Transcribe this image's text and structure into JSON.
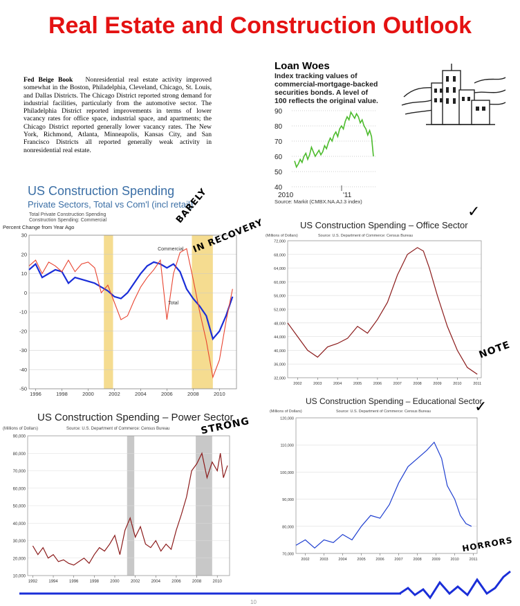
{
  "page_title": "Real Estate and Construction Outlook",
  "beige_book": {
    "heading": "Fed Beige Book",
    "text": "Nonresidential real estate activity improved somewhat in the Boston, Philadelphia, Cleveland, Chicago, St. Louis, and Dallas Districts. The Chicago District reported strong demand for industrial facilities, particularly from the automotive sector. The Philadelphia District reported improvements in terms of lower vacancy rates for office space, industrial space, and apartments; the Chicago District reported generally lower vacancy rates. The New York, Richmond, Atlanta, Minneapolis, Kansas City, and San Francisco Districts all reported generally weak activity in nonresidential real estate."
  },
  "annotations": {
    "barely": "BARELY",
    "in_recovery": "IN RECOVERY",
    "note": "NOTE",
    "strong": "STRONG",
    "horrors": "HORRORS",
    "check": "✓",
    "page_number": "10"
  },
  "colors": {
    "title": "#e41212",
    "green": "#4cbb2c",
    "blue": "#1a2ed8",
    "red": "#e8432f",
    "darkred": "#8b1a1a",
    "edu_blue": "#1f3fd0",
    "band_yellow": "#f5dc90",
    "band_gray": "#c8c8c8",
    "footer_blue": "#1a2ed8"
  },
  "chart_data": [
    {
      "id": "loan",
      "type": "line",
      "title": "Loan Woes",
      "subtitle": "Index tracking values of commercial-mortgage-backed securities bonds. A level of 100 reflects the original value.",
      "source": "Source: Markit (CMBX.NA.AJ.3 index)",
      "ylim": [
        40,
        90
      ],
      "yticks": [
        90,
        80,
        70,
        60,
        50,
        40
      ],
      "x_labels": [
        "2010",
        "'11"
      ],
      "values": [
        57,
        53,
        55,
        58,
        56,
        60,
        62,
        58,
        61,
        66,
        63,
        60,
        62,
        64,
        61,
        63,
        67,
        65,
        69,
        72,
        70,
        74,
        76,
        73,
        78,
        80,
        78,
        83,
        86,
        84,
        89,
        87,
        85,
        88,
        86,
        82,
        84,
        80,
        78,
        74,
        77,
        73,
        60
      ]
    },
    {
      "id": "us_spending",
      "type": "line",
      "title": "US Construction Spending",
      "subtitle": "Private Sectors, Total vs Com'l (incl retail)",
      "legend_note_1": "Total Private Construction Spending",
      "legend_note_2": "Construction Spending: Commercial",
      "ylabel": "Percent Change from Year Ago",
      "ylim": [
        -50,
        30
      ],
      "yticks": [
        30,
        20,
        10,
        0,
        -10,
        -20,
        -30,
        -40,
        -50
      ],
      "xlim": [
        1995.5,
        2011.3
      ],
      "xticks": [
        1996,
        1998,
        2000,
        2002,
        2004,
        2006,
        2008,
        2010
      ],
      "recessions": [
        [
          2001.2,
          2001.9
        ],
        [
          2007.9,
          2009.5
        ]
      ],
      "series": [
        {
          "name": "Total",
          "x": [
            1995.5,
            1996,
            1996.5,
            1997,
            1997.5,
            1998,
            1998.5,
            1999,
            1999.5,
            2000,
            2000.5,
            2001,
            2001.5,
            2002,
            2002.5,
            2003,
            2003.5,
            2004,
            2004.5,
            2005,
            2005.5,
            2006,
            2006.5,
            2007,
            2007.5,
            2008,
            2008.5,
            2009,
            2009.5,
            2010,
            2010.5,
            2011
          ],
          "y": [
            12,
            15,
            8,
            10,
            12,
            11,
            5,
            8,
            7,
            6,
            5,
            3,
            1,
            -2,
            -3,
            0,
            5,
            10,
            14,
            16,
            15,
            13,
            15,
            11,
            2,
            -3,
            -7,
            -12,
            -24,
            -20,
            -12,
            -2
          ]
        },
        {
          "name": "Commercial",
          "x": [
            1995.5,
            1996,
            1996.5,
            1997,
            1997.5,
            1998,
            1998.5,
            1999,
            1999.5,
            2000,
            2000.5,
            2001,
            2001.5,
            2002,
            2002.5,
            2003,
            2003.5,
            2004,
            2004.5,
            2005,
            2005.5,
            2006,
            2006.5,
            2007,
            2007.5,
            2008,
            2008.5,
            2009,
            2009.5,
            2010,
            2010.5,
            2011
          ],
          "y": [
            14,
            17,
            10,
            16,
            14,
            11,
            17,
            11,
            15,
            16,
            13,
            0,
            4,
            -5,
            -14,
            -12,
            -4,
            3,
            8,
            12,
            17,
            -14,
            10,
            21,
            23,
            7,
            -10,
            -25,
            -44,
            -35,
            -15,
            2
          ]
        }
      ]
    },
    {
      "id": "office",
      "type": "line",
      "title": "US Construction Spending – Office Sector",
      "units": "(Millions of Dollars)",
      "source": "Source: U.S. Department of Commerce: Census Bureau",
      "ylim": [
        32000,
        72000
      ],
      "yticks": [
        72000,
        68000,
        64000,
        60000,
        56000,
        52000,
        48000,
        44000,
        40000,
        36000,
        32000
      ],
      "ytick_labels": [
        "72,000",
        "68,000",
        "64,000",
        "60,000",
        "56,000",
        "52,000",
        "48,000",
        "44,000",
        "40,000",
        "36,000",
        "32,000"
      ],
      "xlim": [
        2001.5,
        2011.2
      ],
      "xticks": [
        2002,
        2003,
        2004,
        2005,
        2006,
        2007,
        2008,
        2009,
        2010,
        2011
      ],
      "series": [
        {
          "name": "",
          "x": [
            2001.5,
            2002,
            2002.5,
            2003,
            2003.5,
            2004,
            2004.5,
            2005,
            2005.5,
            2006,
            2006.5,
            2007,
            2007.5,
            2008,
            2008.3,
            2008.6,
            2009,
            2009.5,
            2010,
            2010.5,
            2011
          ],
          "y": [
            48000,
            44000,
            40000,
            38000,
            41000,
            42000,
            43500,
            47000,
            45000,
            49000,
            54000,
            62000,
            68000,
            70000,
            69000,
            64000,
            56000,
            47000,
            40000,
            35000,
            33000
          ]
        }
      ]
    },
    {
      "id": "power",
      "type": "line",
      "title": "US Construction Spending – Power Sector",
      "units": "(Millions of Dollars)",
      "source": "Source: U.S. Department of Commerce: Census Bureau",
      "ylim": [
        10000,
        90000
      ],
      "yticks": [
        90000,
        80000,
        70000,
        60000,
        50000,
        40000,
        30000,
        20000,
        10000
      ],
      "ytick_labels": [
        "90,000",
        "80,000",
        "70,000",
        "60,000",
        "50,000",
        "40,000",
        "30,000",
        "20,000",
        "10,000"
      ],
      "xlim": [
        1991.5,
        2011.2
      ],
      "xticks": [
        1992,
        1994,
        1996,
        1998,
        2000,
        2002,
        2004,
        2006,
        2008,
        2010
      ],
      "recessions": [
        [
          2001.2,
          2001.9
        ],
        [
          2007.9,
          2009.5
        ]
      ],
      "series": [
        {
          "name": "",
          "x": [
            1992,
            1992.5,
            1993,
            1993.5,
            1994,
            1994.5,
            1995,
            1995.5,
            1996,
            1996.5,
            1997,
            1997.5,
            1998,
            1998.5,
            1999,
            1999.5,
            2000,
            2000.5,
            2001,
            2001.5,
            2002,
            2002.5,
            2003,
            2003.5,
            2004,
            2004.5,
            2005,
            2005.5,
            2006,
            2006.5,
            2007,
            2007.5,
            2008,
            2008.5,
            2009,
            2009.5,
            2010,
            2010.3,
            2010.6,
            2011
          ],
          "y": [
            27000,
            22000,
            26000,
            20000,
            22000,
            18000,
            19000,
            17000,
            16000,
            18000,
            20000,
            17000,
            22000,
            26000,
            24000,
            28000,
            33000,
            22000,
            36000,
            43000,
            32000,
            38000,
            28000,
            26000,
            30000,
            24000,
            28000,
            25000,
            36000,
            45000,
            55000,
            70000,
            74000,
            80000,
            66000,
            75000,
            70000,
            80000,
            66000,
            73000
          ]
        }
      ]
    },
    {
      "id": "edu",
      "type": "line",
      "title": "US Construction Spending – Educational Sector",
      "units": "(Millions of Dollars)",
      "source": "Source: U.S. Department of Commerce: Census Bureau",
      "ylim": [
        70000,
        120000
      ],
      "yticks": [
        120000,
        110000,
        100000,
        90000,
        80000,
        70000
      ],
      "ytick_labels": [
        "120,000",
        "110,000",
        "100,000",
        "90,000",
        "80,000",
        "70,000"
      ],
      "xlim": [
        2001.5,
        2011.2
      ],
      "xticks": [
        2002,
        2003,
        2004,
        2005,
        2006,
        2007,
        2008,
        2009,
        2010,
        2011
      ],
      "series": [
        {
          "name": "",
          "x": [
            2001.5,
            2002,
            2002.5,
            2003,
            2003.5,
            2004,
            2004.5,
            2005,
            2005.5,
            2006,
            2006.5,
            2007,
            2007.5,
            2008,
            2008.5,
            2008.9,
            2009.3,
            2009.6,
            2010,
            2010.3,
            2010.6,
            2010.9
          ],
          "y": [
            73000,
            75000,
            72000,
            75000,
            74000,
            77000,
            75000,
            80000,
            84000,
            83000,
            88000,
            96000,
            102000,
            105000,
            108000,
            111000,
            105000,
            95000,
            90000,
            84000,
            81000,
            80000
          ]
        }
      ]
    }
  ]
}
